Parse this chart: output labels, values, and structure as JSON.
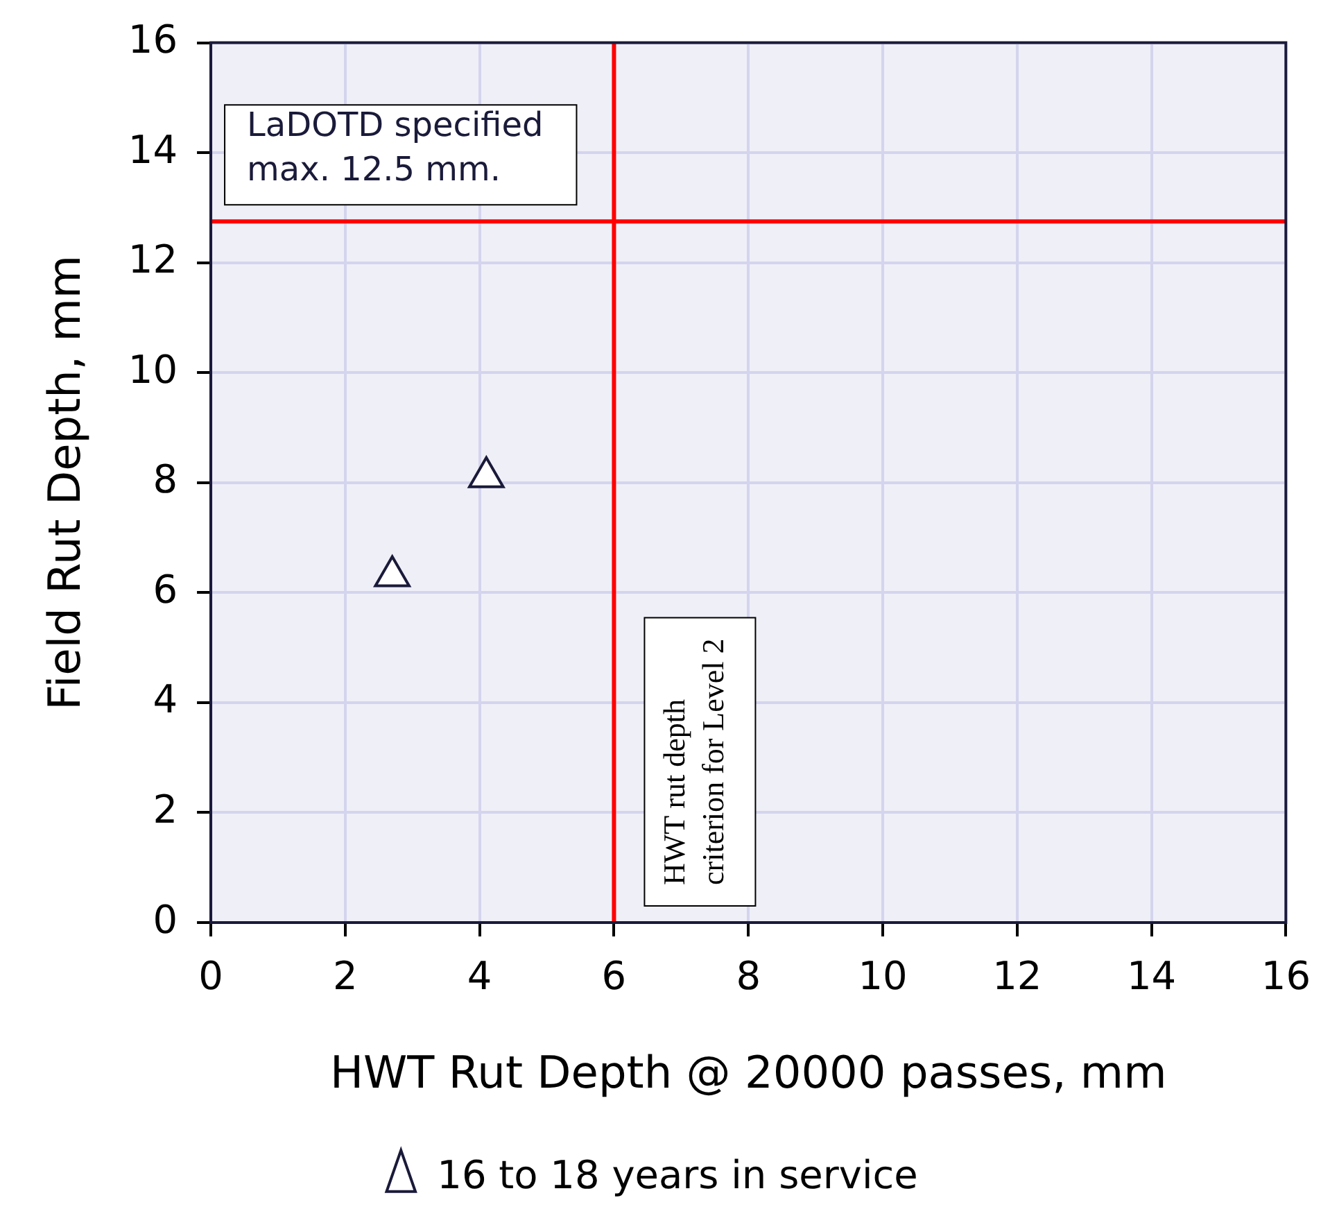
{
  "chart_data": {
    "type": "scatter",
    "xlabel": "HWT Rut Depth @ 20000 passes, mm",
    "ylabel": "Field Rut Depth, mm",
    "series": [
      {
        "name": "16 to 18 years in service",
        "color": "#1a1a3a",
        "x": [
          2.7,
          4.1
        ],
        "values": [
          6.3,
          8.1
        ]
      }
    ],
    "xlim": [
      0,
      16
    ],
    "ylim": [
      0,
      16
    ],
    "xticks": [
      0,
      2,
      4,
      6,
      8,
      10,
      12,
      14,
      16
    ],
    "yticks": [
      0,
      2,
      4,
      6,
      8,
      10,
      12,
      14,
      16
    ],
    "grid": true,
    "legend": "bottom",
    "marker": "triangle",
    "ref_lines": [
      {
        "axis": "y",
        "value": 12.75,
        "label": "LaDOTD specified max. 12.5 mm.",
        "color": "#ff0000"
      },
      {
        "axis": "x",
        "value": 6,
        "label": "HWT rut depth criterion for Level 2",
        "color": "#ff0000"
      }
    ]
  }
}
